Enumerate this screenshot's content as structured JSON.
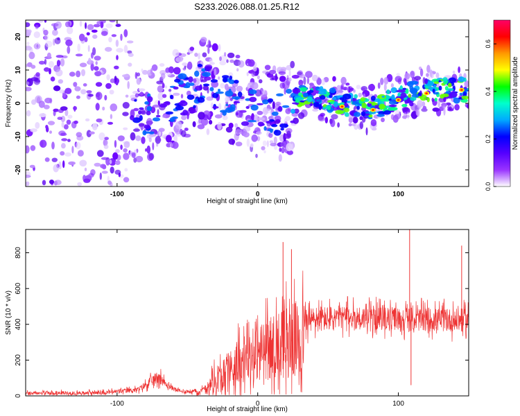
{
  "figure_title": "S233.2026.088.01.25.R12",
  "chart_data": [
    {
      "type": "heatmap",
      "title": "S233.2026.088.01.25.R12",
      "xlabel": "Height of straight line (km)",
      "ylabel": "Frequency (Hz)",
      "xlim": [
        -165,
        150
      ],
      "ylim": [
        -25,
        25
      ],
      "xticks": [
        -100,
        0,
        100
      ],
      "xtick_labels": [
        "-100",
        "0",
        "100"
      ],
      "yticks": [
        -20,
        -10,
        0,
        10,
        20
      ],
      "ytick_labels": [
        "-20",
        "-10",
        "0",
        "10",
        "20"
      ],
      "colorbar": {
        "label": "Normalized spectral amplitude",
        "range": [
          0.0,
          0.7
        ],
        "ticks": [
          0.0,
          0.2,
          0.4,
          0.6
        ],
        "tick_labels": [
          "0.0",
          "0.2",
          "0.4",
          "0.6"
        ],
        "colormap": [
          "#ffffff",
          "#9933ff",
          "#5500ff",
          "#0000ff",
          "#00aaff",
          "#00ffcc",
          "#00ff00",
          "#ffff00",
          "#ff9900",
          "#ff0000",
          "#ff0066"
        ]
      },
      "ridge_center_hz": [
        {
          "x": -80,
          "y": -4
        },
        {
          "x": -40,
          "y": 6
        },
        {
          "x": -10,
          "y": 0
        },
        {
          "x": 0,
          "y": -3
        },
        {
          "x": 20,
          "y": -3
        },
        {
          "x": 30,
          "y": 3
        },
        {
          "x": 60,
          "y": 0
        },
        {
          "x": 80,
          "y": -2
        },
        {
          "x": 100,
          "y": 2
        },
        {
          "x": 120,
          "y": 4
        },
        {
          "x": 145,
          "y": 4
        }
      ],
      "grid": false
    },
    {
      "type": "line",
      "xlabel": "Height of straight line (km)",
      "ylabel": "SNR (10 * v/v)",
      "xlim": [
        -165,
        150
      ],
      "ylim": [
        0,
        930
      ],
      "xticks": [
        -100,
        0,
        100
      ],
      "xtick_labels": [
        "-100",
        "0",
        "100"
      ],
      "yticks": [
        0,
        200,
        400,
        600,
        800
      ],
      "ytick_labels": [
        "0",
        "200",
        "400",
        "600",
        "800"
      ],
      "series_color": "#ee3333",
      "envelope": [
        {
          "x": -165,
          "base": 15,
          "amp": 18
        },
        {
          "x": -110,
          "base": 18,
          "amp": 20
        },
        {
          "x": -85,
          "base": 35,
          "amp": 25
        },
        {
          "x": -70,
          "base": 110,
          "amp": 70
        },
        {
          "x": -65,
          "base": 60,
          "amp": 30
        },
        {
          "x": -55,
          "base": 25,
          "amp": 15
        },
        {
          "x": -40,
          "base": 25,
          "amp": 30
        },
        {
          "x": -30,
          "base": 90,
          "amp": 140
        },
        {
          "x": -15,
          "base": 180,
          "amp": 220
        },
        {
          "x": 0,
          "base": 240,
          "amp": 280
        },
        {
          "x": 15,
          "base": 290,
          "amp": 350
        },
        {
          "x": 32,
          "base": 320,
          "amp": 420
        },
        {
          "x": 34,
          "base": 420,
          "amp": 140
        },
        {
          "x": 60,
          "base": 440,
          "amp": 120
        },
        {
          "x": 100,
          "base": 430,
          "amp": 120
        },
        {
          "x": 150,
          "base": 420,
          "amp": 120
        }
      ],
      "spikes": [
        {
          "x": 108,
          "y": 930
        },
        {
          "x": 109,
          "y": 60
        },
        {
          "x": 145,
          "y": 840
        },
        {
          "x": 18,
          "y": 860
        },
        {
          "x": 24,
          "y": 820
        }
      ],
      "grid": false
    }
  ]
}
